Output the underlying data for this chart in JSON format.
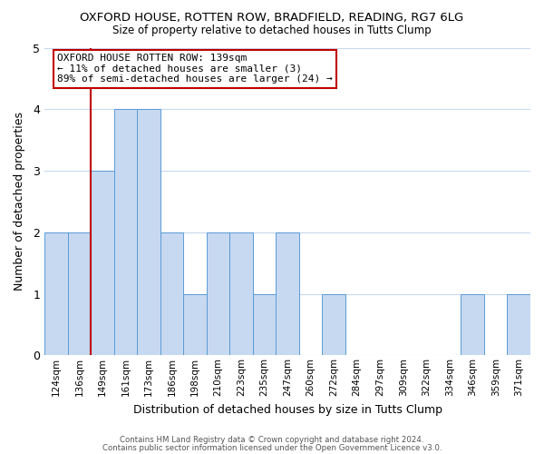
{
  "title": "OXFORD HOUSE, ROTTEN ROW, BRADFIELD, READING, RG7 6LG",
  "subtitle": "Size of property relative to detached houses in Tutts Clump",
  "xlabel": "Distribution of detached houses by size in Tutts Clump",
  "ylabel": "Number of detached properties",
  "bin_labels": [
    "124sqm",
    "136sqm",
    "149sqm",
    "161sqm",
    "173sqm",
    "186sqm",
    "198sqm",
    "210sqm",
    "223sqm",
    "235sqm",
    "247sqm",
    "260sqm",
    "272sqm",
    "284sqm",
    "297sqm",
    "309sqm",
    "322sqm",
    "334sqm",
    "346sqm",
    "359sqm",
    "371sqm"
  ],
  "bar_heights": [
    2,
    2,
    3,
    4,
    4,
    2,
    1,
    2,
    2,
    1,
    2,
    0,
    1,
    0,
    0,
    0,
    0,
    0,
    1,
    0,
    1
  ],
  "bar_color": "#c6d9f1",
  "bar_edge_color": "#5b9bd5",
  "vline_color": "#c00000",
  "vline_x": 1.5,
  "ylim": [
    0,
    5
  ],
  "yticks": [
    0,
    1,
    2,
    3,
    4,
    5
  ],
  "annotation_text": "OXFORD HOUSE ROTTEN ROW: 139sqm\n← 11% of detached houses are smaller (3)\n89% of semi-detached houses are larger (24) →",
  "annotation_box_edgecolor": "#c00000",
  "footer_line1": "Contains HM Land Registry data © Crown copyright and database right 2024.",
  "footer_line2": "Contains public sector information licensed under the Open Government Licence v3.0.",
  "background_color": "#ffffff",
  "grid_color": "#c8d8ee"
}
